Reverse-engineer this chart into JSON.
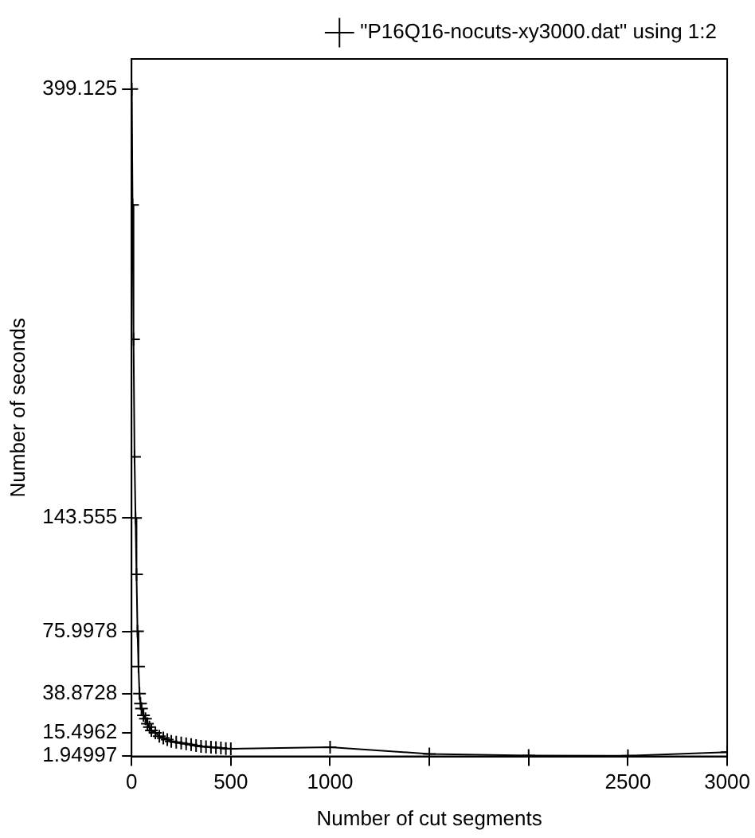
{
  "chart_data": {
    "type": "line",
    "xlabel": "Number of cut segments",
    "ylabel": "Number of seconds",
    "xlim": [
      0,
      3000
    ],
    "xticks": [
      0,
      500,
      1000,
      {
        "value": 1500,
        "label": null
      },
      {
        "value": 2000,
        "label": null
      },
      2500,
      3000
    ],
    "ylim": [
      1.5,
      417
    ],
    "yticks": [
      1.94997,
      15.4962,
      38.8728,
      75.9978,
      143.555,
      399.125
    ],
    "grid": false,
    "legend": "top right",
    "marker": "cross",
    "line_style": "solid",
    "series": [
      {
        "name": "\"P16Q16-nocuts-xy3000.dat\" using 1:2",
        "color": "#000000",
        "x": [
          1,
          5,
          10,
          15,
          20,
          25,
          30,
          35,
          40,
          45,
          50,
          60,
          70,
          80,
          90,
          100,
          120,
          140,
          160,
          180,
          200,
          225,
          250,
          275,
          300,
          325,
          350,
          375,
          400,
          425,
          450,
          475,
          500,
          1000,
          1500,
          2000,
          2500,
          3000
        ],
        "values": [
          399.125,
          330,
          250,
          180,
          143.555,
          110,
          75.9978,
          55,
          38.8728,
          33,
          30,
          26,
          24,
          21,
          19,
          17,
          15.4962,
          13.5,
          12.5,
          11.5,
          10.5,
          10,
          9.5,
          9,
          8.5,
          8,
          7.5,
          7.2,
          7,
          6.8,
          6.5,
          6.2,
          6,
          7,
          3,
          2,
          1.94997,
          4
        ]
      }
    ]
  }
}
